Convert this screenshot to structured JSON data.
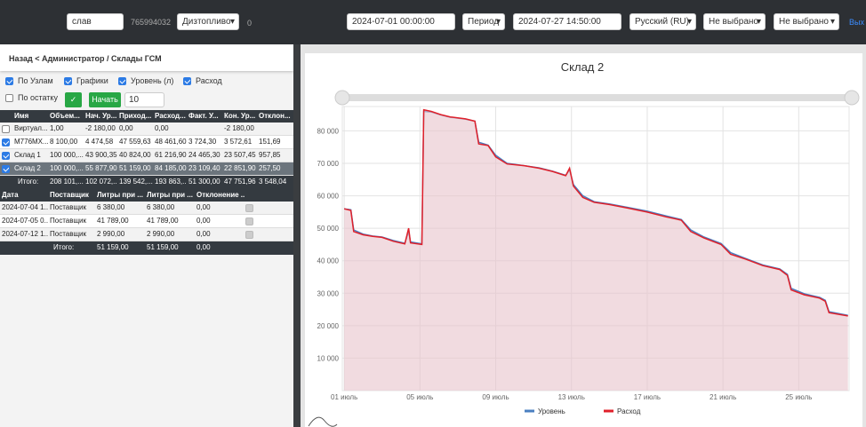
{
  "topbar": {
    "search": "слав",
    "id": "765994032",
    "fuel": "Дизтопливо",
    "count": "0",
    "date_from": "2024-07-01 00:00:00",
    "period": "Период",
    "date_to": "2024-07-27 14:50:00",
    "language": "Русский (RU)",
    "select1": "Не выбрано",
    "select2": "Не выбрано",
    "logout": "Вых"
  },
  "breadcrumb": "Назад < Администратор / Склады ГСМ",
  "options": [
    {
      "label": "По Узлам",
      "checked": true
    },
    {
      "label": "Графики",
      "checked": true
    },
    {
      "label": "Уровень (л)",
      "checked": true
    },
    {
      "label": "Расход",
      "checked": true
    }
  ],
  "remainder": {
    "label": "По остатку",
    "checked": false
  },
  "start_button": "Начать",
  "limit": "10",
  "table": {
    "columns": [
      "Имя",
      "Объем...",
      "Нач. Ур...",
      "Приход...",
      "Расход...",
      "Факт. У...",
      "Кон. Ур...",
      "Отклон..."
    ],
    "rows": [
      {
        "checked": false,
        "cells": [
          "Виртуал...",
          "1,00",
          "-2 180,00",
          "0,00",
          "0,00",
          "",
          "-2 180,00",
          ""
        ]
      },
      {
        "checked": true,
        "cells": [
          "М776МХ...",
          "8 100,00",
          "4 474,58",
          "47 559,63",
          "48 461,60",
          "3 724,30",
          "3 572,61",
          "151,69"
        ]
      },
      {
        "checked": true,
        "cells": [
          "Склад 1",
          "100 000,...",
          "43 900,35",
          "40 824,00",
          "61 216,90",
          "24 465,30",
          "23 507,45",
          "957,85"
        ]
      },
      {
        "checked": true,
        "selected": true,
        "cells": [
          "Склад 2",
          "100 000,...",
          "55 877,90",
          "51 159,00",
          "84 185,00",
          "23 109,40",
          "22 851,90",
          "257,50"
        ]
      }
    ],
    "total": [
      "Итого:",
      "208 101,...",
      "102 072,...",
      "139 542,...",
      "193 863,...",
      "51 300,00",
      "47 751,96",
      "3 548,04"
    ]
  },
  "deliveries": {
    "columns": [
      "Дата",
      "Поставщик",
      "Литры при ...",
      "Литры при ...",
      "Отклонение ..."
    ],
    "rows": [
      {
        "confirmed": true,
        "cells": [
          "2024-07-04 1...",
          "Поставщик",
          "6 380,00",
          "6 380,00",
          "0,00"
        ]
      },
      {
        "confirmed": true,
        "cells": [
          "2024-07-05 0...",
          "Поставщик",
          "41 789,00",
          "41 789,00",
          "0,00"
        ]
      },
      {
        "confirmed": true,
        "cells": [
          "2024-07-12 1...",
          "Поставщик",
          "2 990,00",
          "2 990,00",
          "0,00"
        ]
      }
    ],
    "total": [
      "Итого:",
      "51 159,00",
      "51 159,00",
      "0,00"
    ]
  },
  "chart_data": {
    "type": "line",
    "title": "Склад 2",
    "area": true,
    "grid": true,
    "x": [
      1.0,
      1.35,
      1.5,
      2.0,
      2.5,
      3.0,
      3.6,
      4.2,
      4.4,
      4.5,
      5.1,
      5.2,
      5.6,
      6.1,
      6.6,
      7.4,
      7.9,
      8.1,
      8.6,
      9.0,
      9.6,
      10.5,
      11.3,
      12.0,
      12.7,
      12.9,
      13.1,
      13.6,
      14.2,
      15.0,
      16.0,
      17.0,
      18.0,
      18.8,
      19.3,
      20.0,
      20.9,
      21.4,
      22.2,
      23.1,
      24.0,
      24.4,
      24.6,
      25.3,
      26.1,
      26.4,
      26.6,
      27.6
    ],
    "series": [
      {
        "name": "Уровень",
        "color": "#4a7fc1",
        "values": [
          56000,
          55700,
          49500,
          48200,
          47600,
          47300,
          46200,
          45400,
          49000,
          45800,
          45200,
          86000,
          85800,
          84900,
          84200,
          83600,
          83000,
          76500,
          75600,
          72500,
          70000,
          69300,
          68600,
          67600,
          66300,
          68000,
          63500,
          60000,
          58200,
          57500,
          56400,
          55300,
          53800,
          52700,
          49500,
          47300,
          45300,
          42500,
          40700,
          38700,
          37500,
          35800,
          31500,
          29800,
          28700,
          27800,
          24300,
          23200
        ]
      },
      {
        "name": "Расход",
        "color": "#e0202a",
        "fill": "#e8c3cc",
        "values": [
          56000,
          55500,
          49000,
          48000,
          47500,
          47200,
          46000,
          45200,
          50000,
          45500,
          45000,
          86500,
          86000,
          85000,
          84300,
          83700,
          83000,
          76000,
          75500,
          72000,
          69800,
          69300,
          68500,
          67500,
          66200,
          68500,
          63000,
          59500,
          58000,
          57300,
          56200,
          55000,
          53500,
          52500,
          49000,
          47000,
          45000,
          42000,
          40500,
          38500,
          37300,
          35500,
          31000,
          29500,
          28500,
          27500,
          24000,
          23000
        ]
      }
    ],
    "xlim": [
      0.9,
      27.66
    ],
    "xticks": [
      {
        "value": 1,
        "label": "01 июль"
      },
      {
        "value": 5,
        "label": "05 июль"
      },
      {
        "value": 9,
        "label": "09 июль"
      },
      {
        "value": 13,
        "label": "13 июль"
      },
      {
        "value": 17,
        "label": "17 июль"
      },
      {
        "value": 21,
        "label": "21 июль"
      },
      {
        "value": 25,
        "label": "25 июль"
      }
    ],
    "ylim": [
      0,
      87500
    ],
    "yticks": [
      {
        "value": 10000,
        "label": "10 000"
      },
      {
        "value": 20000,
        "label": "20 000"
      },
      {
        "value": 30000,
        "label": "30 000"
      },
      {
        "value": 40000,
        "label": "40 000"
      },
      {
        "value": 50000,
        "label": "50 000"
      },
      {
        "value": 60000,
        "label": "60 000"
      },
      {
        "value": 70000,
        "label": "70 000"
      },
      {
        "value": 80000,
        "label": "80 000"
      }
    ]
  }
}
